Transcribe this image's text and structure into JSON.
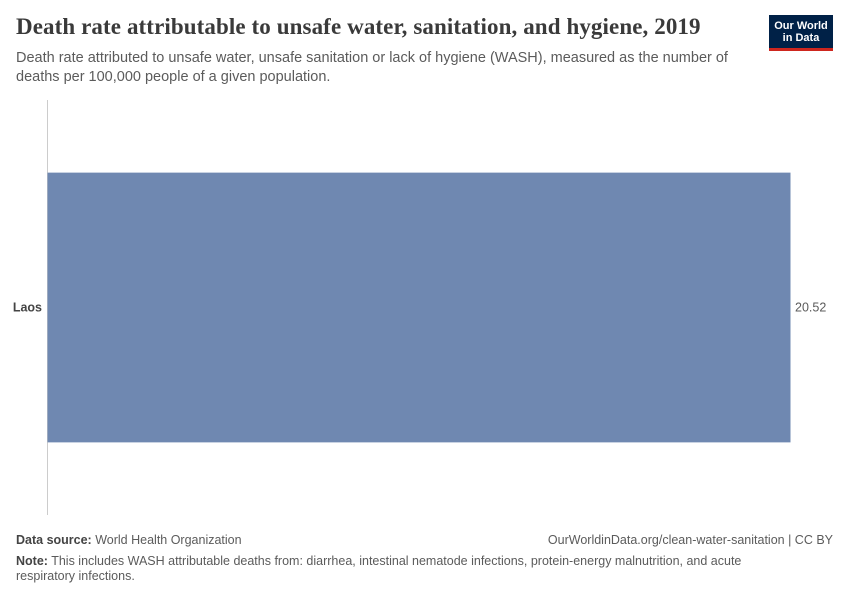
{
  "header": {
    "title": "Death rate attributable to unsafe water, sanitation, and hygiene, 2019",
    "subtitle": "Death rate attributed to unsafe water, unsafe sanitation or lack of hygiene (WASH), measured as the number of deaths per 100,000 people of a given population."
  },
  "logo": {
    "line1": "Our World",
    "line2": "in Data"
  },
  "chart_data": {
    "type": "bar",
    "orientation": "horizontal",
    "categories": [
      "Laos"
    ],
    "values": [
      20.52
    ],
    "value_labels": [
      "20.52"
    ],
    "title": "Death rate attributable to unsafe water, sanitation, and hygiene, 2019",
    "xlim": [
      0,
      20.52
    ],
    "grid": false,
    "colors": {
      "bar": "#6f88b1",
      "axis": "#cccccc"
    }
  },
  "footer": {
    "source_label": "Data source:",
    "source": "World Health Organization",
    "url": "OurWorldinData.org/clean-water-sanitation | CC BY",
    "note_label": "Note:",
    "note": "This includes WASH attributable deaths from: diarrhea, intestinal nematode infections, protein-energy malnutrition, and acute respiratory infections."
  }
}
